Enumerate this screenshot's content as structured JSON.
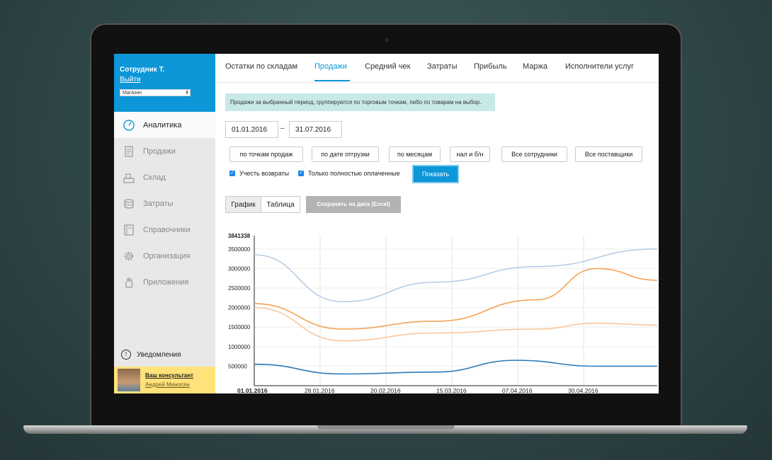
{
  "sidebar": {
    "user_name": "Сотрудник Т.",
    "logout": "Выйти",
    "store": "Магазин",
    "items": [
      {
        "label": "Аналитика",
        "icon": "gauge-icon"
      },
      {
        "label": "Продажи",
        "icon": "receipt-icon"
      },
      {
        "label": "Склад",
        "icon": "warehouse-icon"
      },
      {
        "label": "Затраты",
        "icon": "coins-icon"
      },
      {
        "label": "Справочники",
        "icon": "book-icon"
      },
      {
        "label": "Организация",
        "icon": "gear-icon"
      },
      {
        "label": "Приложения",
        "icon": "hand-icon"
      }
    ],
    "notifications": "Уведомления",
    "consultant_title": "Ваш консультант",
    "consultant_name": "Андрей Миносян"
  },
  "tabs": [
    "Остатки по складам",
    "Продажи",
    "Средний чек",
    "Затраты",
    "Прибыль",
    "Маржа",
    "Исполнители услуг"
  ],
  "active_tab": "Продажи",
  "info_text": "Продажи за выбранный период, группируются по торговым точкам, либо по товарам на выбор.",
  "date_from": "01.01.2016",
  "date_dash": "–",
  "date_to": "31.07.2016",
  "filters": [
    "по точкам продаж",
    "по дате отгрузки",
    "по месяцам",
    "нал и б/н",
    "Все сотрудники",
    "Все поставщики"
  ],
  "checkbox_returns": "Учесть возвраты",
  "checkbox_paid": "Только полностью оплаченные",
  "show_button": "Показать",
  "view_chart": "График",
  "view_table": "Таблица",
  "save_button": "Сохранить на диск (Excel)",
  "colors": {
    "accent": "#0d96d8",
    "line1": "#b7cde6",
    "line2": "#f7a256",
    "line3": "#f9c79d",
    "line4": "#2b7bba"
  },
  "chart_data": {
    "type": "line",
    "x": [
      "01.01.2016",
      "28.01.2016",
      "20.02.2016",
      "15.03.2016",
      "07.04.2016",
      "30.04.2016"
    ],
    "y_max_label": "3841338",
    "yticks": [
      500000,
      1000000,
      1500000,
      2000000,
      2500000,
      3000000,
      3500000
    ],
    "ylim": [
      0,
      3841338
    ],
    "grid": true,
    "series": [
      {
        "color": "#b7cde6",
        "x": [
          0,
          0.22,
          0.45,
          0.7,
          1.0
        ],
        "values": [
          3350000,
          2150000,
          2650000,
          3050000,
          3500000
        ]
      },
      {
        "color": "#f7a256",
        "x": [
          0,
          0.22,
          0.45,
          0.7,
          0.85,
          1.0
        ],
        "values": [
          2100000,
          1450000,
          1650000,
          2200000,
          3000000,
          2700000
        ]
      },
      {
        "color": "#f9c79d",
        "x": [
          0,
          0.22,
          0.45,
          0.7,
          0.85,
          1.0
        ],
        "values": [
          2000000,
          1150000,
          1350000,
          1450000,
          1600000,
          1550000
        ]
      },
      {
        "color": "#2b7bba",
        "x": [
          0,
          0.22,
          0.45,
          0.65,
          0.85,
          1.0
        ],
        "values": [
          550000,
          300000,
          350000,
          650000,
          500000,
          500000
        ]
      }
    ]
  }
}
